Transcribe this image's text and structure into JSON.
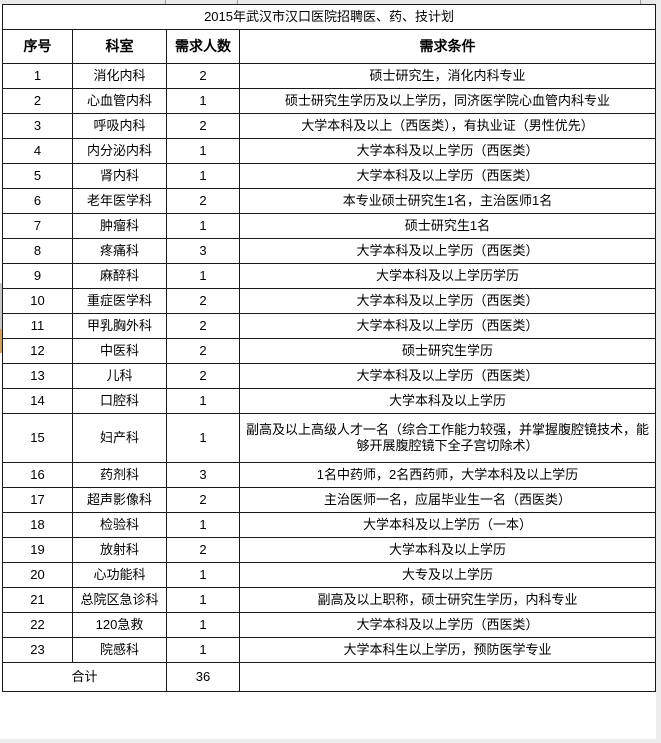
{
  "title": "2015年武汉市汉口医院招聘医、药、技计划",
  "table": {
    "headers": [
      "序号",
      "科室",
      "需求人数",
      "需求条件"
    ],
    "rows": [
      {
        "no": "1",
        "dept": "消化内科",
        "count": "2",
        "req": "硕士研究生，消化内科专业"
      },
      {
        "no": "2",
        "dept": "心血管内科",
        "count": "1",
        "req": "硕士研究生学历及以上学历，同济医学院心血管内科专业"
      },
      {
        "no": "3",
        "dept": "呼吸内科",
        "count": "2",
        "req": "大学本科及以上（西医类），有执业证（男性优先）"
      },
      {
        "no": "4",
        "dept": "内分泌内科",
        "count": "1",
        "req": "大学本科及以上学历（西医类）"
      },
      {
        "no": "5",
        "dept": "肾内科",
        "count": "1",
        "req": "大学本科及以上学历（西医类）"
      },
      {
        "no": "6",
        "dept": "老年医学科",
        "count": "2",
        "req": "本专业硕士研究生1名，主治医师1名"
      },
      {
        "no": "7",
        "dept": "肿瘤科",
        "count": "1",
        "req": "硕士研究生1名"
      },
      {
        "no": "8",
        "dept": "疼痛科",
        "count": "3",
        "req": "大学本科及以上学历（西医类）"
      },
      {
        "no": "9",
        "dept": "麻醉科",
        "count": "1",
        "req": "大学本科及以上学历学历"
      },
      {
        "no": "10",
        "dept": "重症医学科",
        "count": "2",
        "req": "大学本科及以上学历（西医类）"
      },
      {
        "no": "11",
        "dept": "甲乳胸外科",
        "count": "2",
        "req": "大学本科及以上学历（西医类）"
      },
      {
        "no": "12",
        "dept": "中医科",
        "count": "2",
        "req": "硕士研究生学历"
      },
      {
        "no": "13",
        "dept": "儿科",
        "count": "2",
        "req": "大学本科及以上学历（西医类）"
      },
      {
        "no": "14",
        "dept": "口腔科",
        "count": "1",
        "req": "大学本科及以上学历"
      },
      {
        "no": "15",
        "dept": "妇产科",
        "count": "1",
        "req": "副高及以上高级人才一名（综合工作能力较强，并掌握腹腔镜技术，能够开展腹腔镜下全子宫切除术）"
      },
      {
        "no": "16",
        "dept": "药剂科",
        "count": "3",
        "req": "1名中药师，2名西药师，大学本科及以上学历"
      },
      {
        "no": "17",
        "dept": "超声影像科",
        "count": "2",
        "req": "主治医师一名，应届毕业生一名（西医类）"
      },
      {
        "no": "18",
        "dept": "检验科",
        "count": "1",
        "req": "大学本科及以上学历（一本）"
      },
      {
        "no": "19",
        "dept": "放射科",
        "count": "2",
        "req": "大学本科及以上学历"
      },
      {
        "no": "20",
        "dept": "心功能科",
        "count": "1",
        "req": "大专及以上学历"
      },
      {
        "no": "21",
        "dept": "总院区急诊科",
        "count": "1",
        "req": "副高及以上职称，硕士研究生学历，内科专业"
      },
      {
        "no": "22",
        "dept": "120急救",
        "count": "1",
        "req": "大学本科及以上学历（西医类）"
      },
      {
        "no": "23",
        "dept": "院感科",
        "count": "1",
        "req": "大学本科生以上学历，预防医学专业"
      }
    ],
    "total_row": {
      "label": "合计",
      "count": "36",
      "req": ""
    }
  },
  "colors": {
    "border": "#1a1a1a",
    "margin_gray": "#e9e9e9",
    "left_mark_tan": "#cfa05e",
    "left_mark_gray": "#c6c6c6"
  }
}
